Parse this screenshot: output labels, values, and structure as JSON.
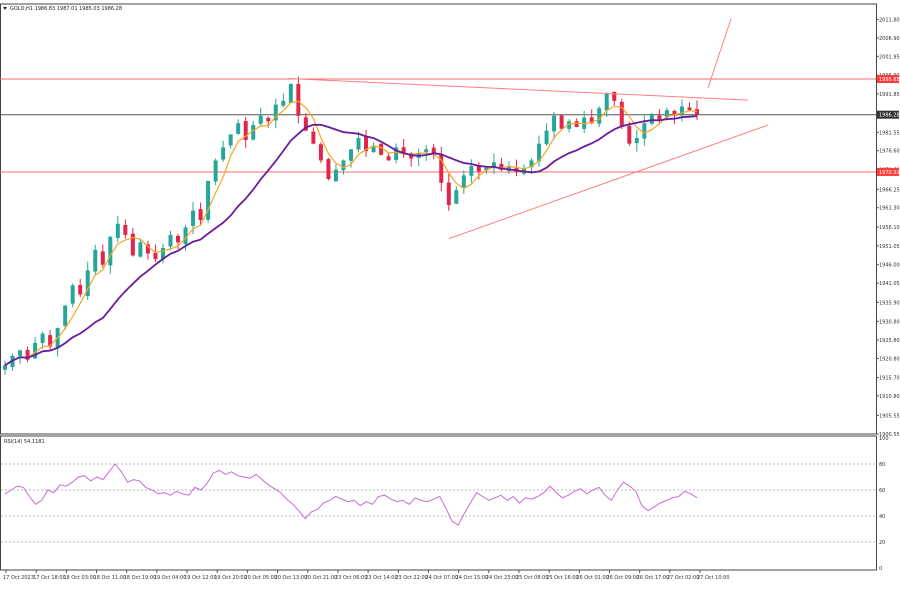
{
  "header": {
    "symbol": "GOLD,H1",
    "ohlc": "1986.83 1987.01 1985.03 1986.28"
  },
  "rsi_label": "RSI(14) 54.1181",
  "colors": {
    "bull": "#26a69a",
    "bear": "#e0264a",
    "ma_fast": "#f5a623",
    "ma_slow": "#6a1b9a",
    "level": "#ff6b6b",
    "current": "#555555",
    "trend": "#ff8080",
    "rsi": "#c86ad8",
    "price_tag_red": "#ff3b3b",
    "price_tag_dark": "#333333"
  },
  "chart_data": [
    {
      "type": "candlestick",
      "symbol": "GOLD",
      "timeframe": "H1",
      "ylim": [
        1900.55,
        2016.0
      ],
      "y_ticks": [
        "2011.80",
        "2006.90",
        "2001.95",
        "1996.90",
        "1991.85",
        "1986.28",
        "1981.55",
        "1976.60",
        "1971.61",
        "1966.25",
        "1961.30",
        "1956.10",
        "1951.05",
        "1946.00",
        "1941.05",
        "1935.90",
        "1930.80",
        "1925.80",
        "1920.80",
        "1915.70",
        "1910.80",
        "1905.55",
        "1900.55"
      ],
      "x_ticks": [
        "17 Oct 2023",
        "17 Oct 18:00",
        "18 Oct 03:00",
        "18 Oct 11:00",
        "18 Oct 19:00",
        "19 Oct 04:00",
        "19 Oct 12:00",
        "19 Oct 20:00",
        "20 Oct 05:00",
        "20 Oct 13:00",
        "20 Oct 21:00",
        "23 Oct 06:00",
        "23 Oct 14:00",
        "23 Oct 22:00",
        "24 Oct 07:00",
        "24 Oct 15:00",
        "24 Oct 23:00",
        "25 Oct 08:00",
        "25 Oct 16:00",
        "26 Oct 01:00",
        "26 Oct 09:00",
        "26 Oct 17:00",
        "27 Oct 02:00",
        "27 Oct 10:00"
      ],
      "close_path": [
        1919.0,
        1921.5,
        1923.0,
        1920.5,
        1925.0,
        1927.5,
        1924.0,
        1929.0,
        1935.0,
        1940.5,
        1938.0,
        1944.5,
        1950.0,
        1946.0,
        1953.5,
        1957.0,
        1954.0,
        1948.5,
        1952.0,
        1949.0,
        1947.5,
        1950.5,
        1954.0,
        1952.0,
        1956.0,
        1960.5,
        1958.0,
        1968.5,
        1974.0,
        1977.5,
        1981.0,
        1984.0,
        1979.5,
        1983.5,
        1986.0,
        1984.5,
        1989.0,
        1990.0,
        1994.5,
        1986.0,
        1982.0,
        1978.5,
        1974.0,
        1969.0,
        1971.5,
        1974.0,
        1977.0,
        1980.0,
        1976.5,
        1978.0,
        1975.5,
        1974.0,
        1977.5,
        1976.0,
        1974.5,
        1976.0,
        1977.0,
        1975.5,
        1968.0,
        1962.0,
        1966.0,
        1970.0,
        1972.5,
        1971.0,
        1972.0,
        1973.5,
        1971.5,
        1972.5,
        1971.0,
        1972.0,
        1974.0,
        1978.5,
        1982.0,
        1986.0,
        1982.5,
        1984.5,
        1983.0,
        1985.5,
        1984.0,
        1988.0,
        1992.0,
        1990.0,
        1983.0,
        1978.5,
        1980.0,
        1984.0,
        1986.5,
        1985.0,
        1987.5,
        1986.0,
        1988.5,
        1987.5,
        1986.3
      ],
      "high_max": 1994.8,
      "low_min": 1917.2,
      "horizontal_levels": [
        {
          "value": 1995.85,
          "label": "1995.85",
          "role": "resistance"
        },
        {
          "value": 1986.28,
          "label": "1986.28",
          "role": "current price"
        },
        {
          "value": 1970.91,
          "label": "1970.91",
          "role": "support"
        }
      ],
      "indicators": [
        {
          "name": "fast MA",
          "color": "#f5a623"
        },
        {
          "name": "slow MA",
          "color": "#6a1b9a"
        }
      ],
      "annotations": [
        "descending trendline from 20 Oct high",
        "ascending trendline from 24 Oct low",
        "projected breakout arrow upward"
      ],
      "grid": false
    },
    {
      "type": "line",
      "name": "RSI(14)",
      "value_last": 54.1181,
      "ylim": [
        0,
        100
      ],
      "y_ticks": [
        "100",
        "80",
        "60",
        "40",
        "20",
        "0"
      ],
      "reference_lines": [
        80,
        60,
        40,
        20
      ],
      "values": [
        57,
        60,
        63,
        62,
        55,
        49,
        52,
        60,
        58,
        64,
        63,
        66,
        70,
        71,
        67,
        70,
        68,
        74,
        80,
        74,
        66,
        68,
        67,
        62,
        60,
        57,
        58,
        56,
        59,
        57,
        56,
        62,
        60,
        65,
        73,
        75,
        72,
        74,
        71,
        70,
        69,
        72,
        68,
        64,
        61,
        58,
        53,
        49,
        44,
        38,
        43,
        45,
        50,
        52,
        55,
        53,
        51,
        52,
        48,
        51,
        49,
        55,
        56,
        53,
        51,
        52,
        49,
        54,
        52,
        51,
        53,
        55,
        46,
        36,
        33,
        42,
        50,
        58,
        55,
        52,
        54,
        56,
        52,
        55,
        50,
        54,
        53,
        55,
        58,
        63,
        58,
        54,
        56,
        59,
        61,
        57,
        60,
        62,
        56,
        52,
        60,
        66,
        63,
        59,
        48,
        44,
        47,
        50,
        52,
        54,
        55,
        59,
        57,
        54
      ]
    }
  ]
}
